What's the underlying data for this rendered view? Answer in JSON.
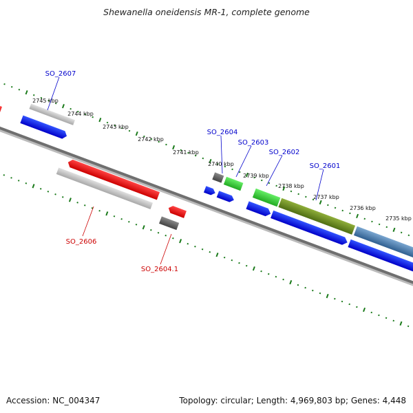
{
  "title": "Shewanella oneidensis MR-1, complete genome",
  "footer": {
    "accession": "Accession: NC_004347",
    "topology": "Topology: circular; Length: 4,969,803 bp; Genes: 4,448"
  },
  "colors": {
    "background": "#ffffff",
    "backbone": "#777777",
    "tick": "#1a7a1a",
    "forward_label": "#0000cc",
    "reverse_label": "#cc0000",
    "feature_blue": "#0000ee",
    "feature_red": "#ee0000",
    "feature_grey_light": "#c8c8c8",
    "feature_grey_dark": "#606060",
    "feature_green": "#33cc33",
    "feature_olive": "#6b8e23",
    "feature_steelblue": "#4a7fb0"
  },
  "scale": {
    "unit": "kbp",
    "labels": [
      "2745 kbp",
      "2744 kbp",
      "2743 kbp",
      "2742 kbp",
      "2741 kbp",
      "2740 kbp",
      "2739 kbp",
      "2738 kbp",
      "2737 kbp",
      "2736 kbp",
      "2735 kbp"
    ]
  },
  "gene_labels": {
    "forward": [
      "SO_2607",
      "SO_2604",
      "SO_2603",
      "SO_2602",
      "SO_2601"
    ],
    "reverse": [
      "SO_2606",
      "SO_2604.1"
    ]
  }
}
